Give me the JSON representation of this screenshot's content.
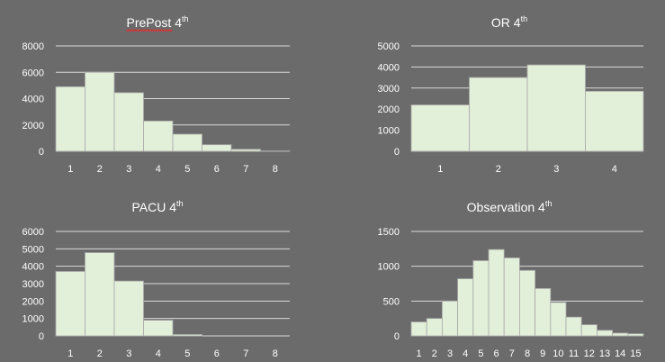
{
  "colors": {
    "background": "#6b6b6b",
    "bar_fill": "#e2efd9",
    "gridline": "#d9d9d9",
    "text": "#ffffff"
  },
  "chart_data": [
    {
      "type": "bar",
      "title": "PrePost 4",
      "title_sup": "th",
      "categories": [
        "1",
        "2",
        "3",
        "4",
        "5",
        "6",
        "7",
        "8"
      ],
      "values": [
        4900,
        6000,
        4450,
        2300,
        1300,
        500,
        150,
        30
      ],
      "yticks": [
        0,
        2000,
        4000,
        6000,
        8000
      ],
      "ylim": [
        0,
        8000
      ],
      "grid": true,
      "legend": "none"
    },
    {
      "type": "bar",
      "title": "OR 4",
      "title_sup": "th",
      "categories": [
        "1",
        "2",
        "3",
        "4"
      ],
      "values": [
        2200,
        3500,
        4100,
        2850
      ],
      "yticks": [
        0,
        1000,
        2000,
        3000,
        4000,
        5000
      ],
      "ylim": [
        0,
        5000
      ],
      "grid": true,
      "legend": "none"
    },
    {
      "type": "bar",
      "title": "PACU 4",
      "title_sup": "th",
      "categories": [
        "1",
        "2",
        "3",
        "4",
        "5",
        "6",
        "7",
        "8"
      ],
      "values": [
        3700,
        4780,
        3150,
        900,
        80,
        10,
        5,
        0
      ],
      "yticks": [
        0,
        1000,
        2000,
        3000,
        4000,
        5000,
        6000
      ],
      "ylim": [
        0,
        6000
      ],
      "grid": true,
      "legend": "none"
    },
    {
      "type": "bar",
      "title": "Observation 4",
      "title_sup": "th",
      "categories": [
        "1",
        "2",
        "3",
        "4",
        "5",
        "6",
        "7",
        "8",
        "9",
        "10",
        "11",
        "12",
        "13",
        "14",
        "15"
      ],
      "values": [
        200,
        250,
        500,
        820,
        1080,
        1240,
        1120,
        940,
        680,
        480,
        270,
        160,
        80,
        40,
        30
      ],
      "yticks": [
        0,
        500,
        1000,
        1500
      ],
      "ylim": [
        0,
        1500
      ],
      "grid": true,
      "legend": "none"
    }
  ]
}
